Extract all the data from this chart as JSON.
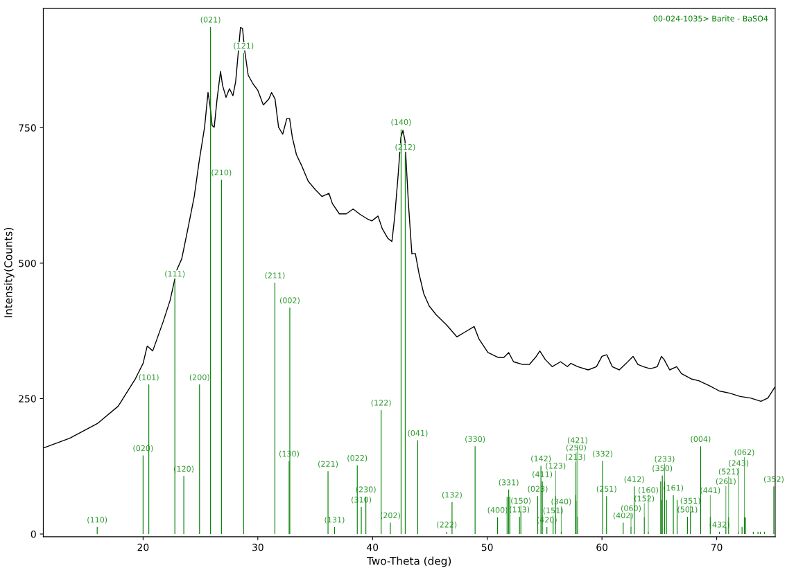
{
  "chart_data": {
    "type": "line",
    "xlabel": "Two-Theta (deg)",
    "ylabel": "Intensity(Counts)",
    "xlim": [
      11.3,
      75.1
    ],
    "ylim": [
      -5,
      970
    ],
    "xticks": [
      20,
      30,
      40,
      50,
      60,
      70
    ],
    "yticks": [
      0,
      250,
      500,
      750
    ],
    "grid": false,
    "legend": "top right",
    "marker": "none",
    "line_style": "solid",
    "series": [
      {
        "color": "#000000",
        "x": [
          11.33,
          13.61,
          16.02,
          17.83,
          19.34,
          20.0,
          20.36,
          20.84,
          21.75,
          22.35,
          22.95,
          23.37,
          23.86,
          24.46,
          24.88,
          25.36,
          25.66,
          25.84,
          26.02,
          26.2,
          26.45,
          26.75,
          26.93,
          27.23,
          27.53,
          27.83,
          28.07,
          28.31,
          28.49,
          28.67,
          28.86,
          29.16,
          29.58,
          30.0,
          30.48,
          30.96,
          31.2,
          31.5,
          31.81,
          32.17,
          32.53,
          32.77,
          33.01,
          33.37,
          33.8,
          34.4,
          35.0,
          35.6,
          36.2,
          36.5,
          37.11,
          37.71,
          38.31,
          38.92,
          39.52,
          39.94,
          40.48,
          40.84,
          41.33,
          41.69,
          41.93,
          42.23,
          42.47,
          42.65,
          42.83,
          43.13,
          43.43,
          43.73,
          44.04,
          44.46,
          44.94,
          45.54,
          46.45,
          47.35,
          48.07,
          48.86,
          49.28,
          50.06,
          50.96,
          51.45,
          51.87,
          52.29,
          53.07,
          53.67,
          54.28,
          54.58,
          55.06,
          55.66,
          56.39,
          56.99,
          57.29,
          57.89,
          58.8,
          59.52,
          60.0,
          60.42,
          60.9,
          61.51,
          62.11,
          62.71,
          63.13,
          63.61,
          64.22,
          64.82,
          65.18,
          65.42,
          65.9,
          66.51,
          66.93,
          67.83,
          68.43,
          69.34,
          70.24,
          71.14,
          72.05,
          72.95,
          73.86,
          74.46,
          75.07
        ],
        "values": [
          159,
          177,
          204,
          236,
          287,
          315,
          347,
          338,
          392,
          431,
          488,
          508,
          559,
          623,
          687,
          751,
          815,
          790,
          754,
          751,
          803,
          854,
          828,
          806,
          822,
          809,
          835,
          892,
          935,
          933,
          892,
          847,
          831,
          819,
          792,
          803,
          815,
          803,
          751,
          738,
          767,
          767,
          732,
          700,
          681,
          651,
          636,
          623,
          629,
          610,
          591,
          591,
          600,
          590,
          582,
          578,
          587,
          564,
          546,
          540,
          585,
          662,
          732,
          745,
          726,
          610,
          517,
          518,
          482,
          444,
          421,
          405,
          386,
          364,
          373,
          383,
          360,
          335,
          326,
          326,
          335,
          318,
          313,
          313,
          328,
          338,
          322,
          309,
          318,
          309,
          315,
          309,
          303,
          309,
          328,
          331,
          309,
          303,
          315,
          328,
          313,
          309,
          305,
          309,
          328,
          322,
          303,
          309,
          296,
          286,
          283,
          274,
          264,
          260,
          254,
          251,
          245,
          251,
          271
        ]
      },
      {
        "type": "bar",
        "name": "00-024-1035> Barite - BaSO4",
        "color": "#008000",
        "x": [
          16.0,
          20.0,
          20.5,
          22.77,
          23.55,
          24.92,
          25.88,
          26.83,
          28.76,
          31.49,
          32.73,
          32.79,
          36.12,
          36.69,
          38.67,
          39.02,
          39.42,
          40.75,
          41.55,
          42.49,
          42.85,
          43.94,
          46.47,
          46.93,
          48.94,
          50.9,
          51.73,
          51.87,
          51.97,
          52.81,
          52.93,
          54.4,
          54.68,
          54.8,
          55.2,
          55.74,
          55.96,
          56.45,
          57.69,
          57.75,
          57.87,
          60.06,
          60.4,
          61.85,
          62.53,
          62.81,
          63.69,
          64.04,
          65.12,
          65.2,
          65.26,
          65.46,
          65.62,
          66.22,
          66.55,
          67.45,
          67.71,
          68.6,
          69.44,
          70.24,
          70.8,
          71.04,
          71.91,
          72.21,
          72.41,
          72.51,
          73.19,
          73.6,
          73.8,
          74.16,
          74.98
        ],
        "values": [
          13,
          145,
          276,
          467,
          107,
          276,
          936,
          654,
          888,
          464,
          135,
          418,
          116,
          13,
          127,
          50,
          69,
          229,
          21,
          747,
          701,
          173,
          4,
          59,
          162,
          31,
          69,
          82,
          69,
          32,
          41,
          70,
          126,
          97,
          13,
          23,
          70,
          4,
          72,
          61,
          32,
          135,
          70,
          21,
          13,
          88,
          31,
          4,
          97,
          63,
          108,
          97,
          63,
          72,
          63,
          32,
          41,
          162,
          32,
          4,
          13,
          31,
          4,
          13,
          31,
          31,
          4,
          4,
          4,
          4,
          88
        ]
      }
    ],
    "annotations": [
      {
        "text": "(110)",
        "x": 16.0,
        "y": 13
      },
      {
        "text": "(020)",
        "x": 20.0,
        "y": 145
      },
      {
        "text": "(101)",
        "x": 20.5,
        "y": 276
      },
      {
        "text": "(111)",
        "x": 22.77,
        "y": 467
      },
      {
        "text": "(120)",
        "x": 23.55,
        "y": 107
      },
      {
        "text": "(200)",
        "x": 24.92,
        "y": 276
      },
      {
        "text": "(021)",
        "x": 25.88,
        "y": 936
      },
      {
        "text": "(210)",
        "x": 26.83,
        "y": 654
      },
      {
        "text": "(121)",
        "x": 28.76,
        "y": 888
      },
      {
        "text": "(211)",
        "x": 31.49,
        "y": 464
      },
      {
        "text": "(130)",
        "x": 32.73,
        "y": 135
      },
      {
        "text": "(002)",
        "x": 32.79,
        "y": 418
      },
      {
        "text": "(221)",
        "x": 36.12,
        "y": 116
      },
      {
        "text": "(131)",
        "x": 36.69,
        "y": 13
      },
      {
        "text": "(022)",
        "x": 38.67,
        "y": 127
      },
      {
        "text": "(310)",
        "x": 39.02,
        "y": 50
      },
      {
        "text": "(230)",
        "x": 39.42,
        "y": 69
      },
      {
        "text": "(122)",
        "x": 40.75,
        "y": 229
      },
      {
        "text": "(202)",
        "x": 41.55,
        "y": 21
      },
      {
        "text": "(140)",
        "x": 42.49,
        "y": 747
      },
      {
        "text": "(212)",
        "x": 42.85,
        "y": 701
      },
      {
        "text": "(041)",
        "x": 43.94,
        "y": 173
      },
      {
        "text": "(222)",
        "x": 46.47,
        "y": 4
      },
      {
        "text": "(132)",
        "x": 46.93,
        "y": 59
      },
      {
        "text": "(330)",
        "x": 48.94,
        "y": 162
      },
      {
        "text": "(400)",
        "x": 50.9,
        "y": 31
      },
      {
        "text": "(331)",
        "x": 51.87,
        "y": 82
      },
      {
        "text": "(113)",
        "x": 52.81,
        "y": 32
      },
      {
        "text": "(150)",
        "x": 52.93,
        "y": 41
      },
      {
        "text": "(023)",
        "x": 54.4,
        "y": 70
      },
      {
        "text": "(142)",
        "x": 54.68,
        "y": 126
      },
      {
        "text": "(411)",
        "x": 54.8,
        "y": 97
      },
      {
        "text": "(420)",
        "x": 55.2,
        "y": 13
      },
      {
        "text": "(151)",
        "x": 55.74,
        "y": 23
      },
      {
        "text": "(123)",
        "x": 55.96,
        "y": 70
      },
      {
        "text": "(340)",
        "x": 56.45,
        "y": 4
      },
      {
        "text": "(213)",
        "x": 57.69,
        "y": 72
      },
      {
        "text": "(250)",
        "x": 57.75,
        "y": 61
      },
      {
        "text": "(421)",
        "x": 57.87,
        "y": 32
      },
      {
        "text": "(332)",
        "x": 60.06,
        "y": 135
      },
      {
        "text": "(251)",
        "x": 60.4,
        "y": 70
      },
      {
        "text": "(402)",
        "x": 61.85,
        "y": 21
      },
      {
        "text": "(060)",
        "x": 62.53,
        "y": 13
      },
      {
        "text": "(412)",
        "x": 62.81,
        "y": 88
      },
      {
        "text": "(152)",
        "x": 63.69,
        "y": 31
      },
      {
        "text": "(160)",
        "x": 64.04,
        "y": 4
      },
      {
        "text": "(350)",
        "x": 65.26,
        "y": 108
      },
      {
        "text": "(233)",
        "x": 65.46,
        "y": 97
      },
      {
        "text": "(161)",
        "x": 66.22,
        "y": 72
      },
      {
        "text": "(501)",
        "x": 67.45,
        "y": 32
      },
      {
        "text": "(351)",
        "x": 67.71,
        "y": 41
      },
      {
        "text": "(004)",
        "x": 68.6,
        "y": 162
      },
      {
        "text": "(441)",
        "x": 69.44,
        "y": 32
      },
      {
        "text": "(432)",
        "x": 70.24,
        "y": 4
      },
      {
        "text": "(261)",
        "x": 70.8,
        "y": 13
      },
      {
        "text": "(521)",
        "x": 71.04,
        "y": 31
      },
      {
        "text": "(243)",
        "x": 71.91,
        "y": 4
      },
      {
        "text": "(062)",
        "x": 72.41,
        "y": 31
      },
      {
        "text": "(352)",
        "x": 74.98,
        "y": 88
      }
    ]
  }
}
